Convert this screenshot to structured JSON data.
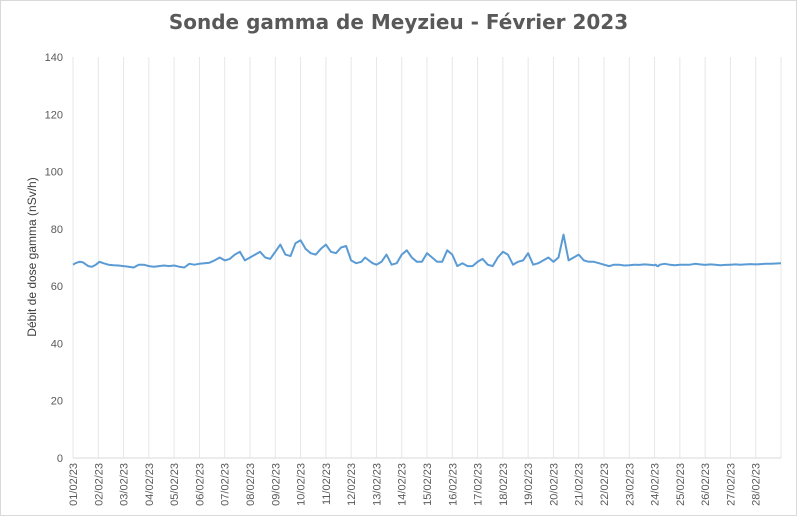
{
  "chart_data": {
    "type": "line",
    "title": "Sonde gamma de Meyzieu - Février 2023",
    "xlabel": "",
    "ylabel": "Débit de dose gamma (nSv/h)",
    "ylim": [
      0,
      140
    ],
    "yticks": [
      "0",
      "20",
      "40",
      "60",
      "80",
      "100",
      "120",
      "140"
    ],
    "categories": [
      "01/02/23",
      "02/02/23",
      "03/02/23",
      "04/02/23",
      "05/02/23",
      "06/02/23",
      "07/02/23",
      "08/02/23",
      "09/02/23",
      "10/02/23",
      "11/02/23",
      "12/02/23",
      "13/02/23",
      "14/02/23",
      "15/02/23",
      "16/02/23",
      "17/02/23",
      "18/02/23",
      "19/02/23",
      "20/02/23",
      "21/02/23",
      "22/02/23",
      "23/02/23",
      "24/02/23",
      "25/02/23",
      "26/02/23",
      "27/02/23",
      "28/02/23"
    ],
    "grid": "vertical",
    "legend": "none",
    "color": "#5b9bd5",
    "series": [
      {
        "x": [
          0,
          0.1,
          0.25,
          0.4,
          0.6,
          0.75,
          0.9,
          1.05,
          1.2,
          1.4,
          1.6,
          1.8,
          2.0,
          2.2,
          2.4,
          2.6,
          2.8,
          3.0,
          3.2,
          3.4,
          3.6,
          3.8,
          4.0,
          4.2,
          4.4,
          4.6,
          4.8,
          5.0,
          5.2,
          5.4,
          5.6,
          5.8,
          6.0,
          6.2,
          6.4,
          6.6,
          6.8,
          7.0,
          7.2,
          7.4,
          7.6,
          7.8,
          8.0,
          8.2,
          8.4,
          8.6,
          8.8,
          9.0,
          9.2,
          9.4,
          9.6,
          9.8,
          10.0,
          10.2,
          10.4,
          10.6,
          10.8,
          11.0,
          11.2,
          11.4,
          11.55,
          11.7,
          11.85,
          12.0,
          12.2,
          12.4,
          12.6,
          12.8,
          13.0,
          13.2,
          13.4,
          13.6,
          13.8,
          14.0,
          14.2,
          14.4,
          14.6,
          14.8,
          15.0,
          15.2,
          15.4,
          15.6,
          15.8,
          16.0,
          16.2,
          16.4,
          16.6,
          16.8,
          17.0,
          17.2,
          17.4,
          17.6,
          17.8,
          18.0,
          18.2,
          18.4,
          18.6,
          18.8,
          19.0,
          19.2,
          19.4,
          19.6,
          19.8,
          20.0,
          20.2,
          20.4,
          20.6,
          20.8,
          21.0,
          21.2,
          21.4,
          21.6,
          21.8,
          22.0,
          22.2,
          22.4,
          22.6,
          22.8,
          23.0,
          23.05,
          23.1,
          23.15,
          23.2,
          23.4,
          23.6,
          23.8,
          24.0,
          24.2,
          24.4,
          24.6,
          24.8,
          25.0,
          25.2,
          25.4,
          25.6,
          25.8,
          26.0,
          26.2,
          26.4,
          26.6,
          26.8,
          27.0,
          27.2,
          27.4,
          27.6,
          27.8,
          28.0
        ],
        "y": [
          67.5,
          68,
          68.5,
          68.3,
          67,
          66.8,
          67.5,
          68.5,
          68,
          67.5,
          67.3,
          67.2,
          67,
          66.8,
          66.5,
          67.5,
          67.5,
          67,
          66.8,
          67,
          67.2,
          67,
          67.2,
          66.8,
          66.5,
          67.8,
          67.5,
          67.8,
          68,
          68.2,
          69,
          70,
          69,
          69.5,
          71,
          72,
          69,
          70,
          71,
          72,
          70,
          69.5,
          72,
          74.5,
          71,
          70.5,
          75,
          76,
          73,
          71.5,
          71,
          73,
          74.5,
          72,
          71.5,
          73.5,
          74,
          69,
          68,
          68.5,
          70,
          69,
          68,
          67.5,
          68.5,
          71,
          67.5,
          68,
          71,
          72.5,
          70,
          68.5,
          68.5,
          71.5,
          70,
          68.5,
          68.5,
          72.5,
          71,
          67,
          68,
          67,
          67,
          68.5,
          69.5,
          67.5,
          67,
          70,
          72,
          71,
          67.5,
          68.5,
          69,
          71.5,
          67.5,
          68,
          69,
          70,
          68.5,
          70,
          78,
          69,
          70,
          71,
          69,
          68.5,
          68.5,
          68,
          67.5,
          67,
          67.5,
          67.5,
          67.2,
          67.3,
          67.5,
          67.4,
          67.6,
          67.5,
          67.3,
          67.5,
          67,
          67,
          67.5,
          67.8,
          67.5,
          67.3,
          67.5,
          67.5,
          67.5,
          67.8,
          67.6,
          67.4,
          67.6,
          67.5,
          67.3,
          67.4,
          67.5,
          67.6,
          67.5,
          67.6,
          67.7,
          67.6,
          67.7,
          67.8,
          67.8,
          67.9,
          68
        ]
      }
    ]
  }
}
